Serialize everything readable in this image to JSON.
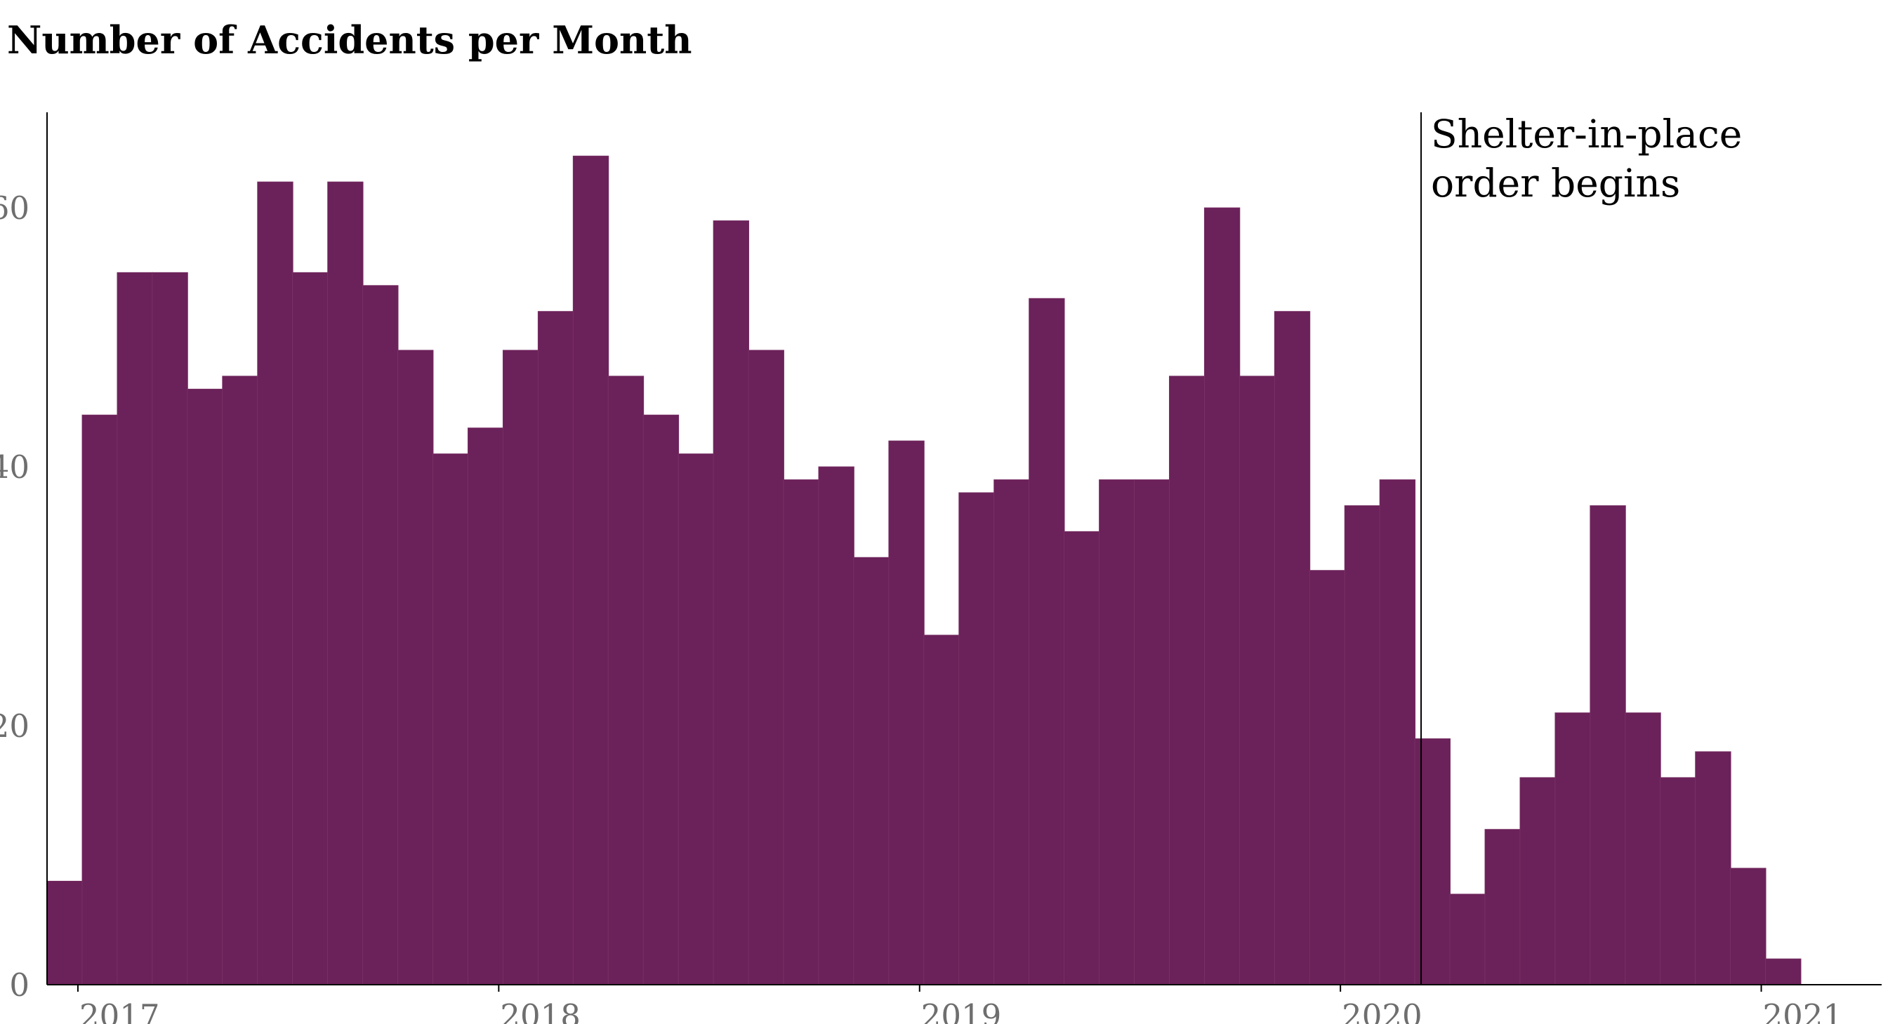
{
  "chart_data": {
    "type": "bar",
    "title": "Number of Accidents per Month",
    "xlabel": "",
    "ylabel": "",
    "x_start": "2016-12",
    "categories": [
      "2016-12",
      "2017-01",
      "2017-02",
      "2017-03",
      "2017-04",
      "2017-05",
      "2017-06",
      "2017-07",
      "2017-08",
      "2017-09",
      "2017-10",
      "2017-11",
      "2017-12",
      "2018-01",
      "2018-02",
      "2018-03",
      "2018-04",
      "2018-05",
      "2018-06",
      "2018-07",
      "2018-08",
      "2018-09",
      "2018-10",
      "2018-11",
      "2018-12",
      "2019-01",
      "2019-02",
      "2019-03",
      "2019-04",
      "2019-05",
      "2019-06",
      "2019-07",
      "2019-08",
      "2019-09",
      "2019-10",
      "2019-11",
      "2019-12",
      "2020-01",
      "2020-02",
      "2020-03",
      "2020-04",
      "2020-05",
      "2020-06",
      "2020-07",
      "2020-08",
      "2020-09",
      "2020-10",
      "2020-11",
      "2020-12",
      "2021-01"
    ],
    "values": [
      8,
      44,
      55,
      55,
      46,
      47,
      62,
      55,
      62,
      54,
      49,
      41,
      43,
      49,
      52,
      64,
      47,
      44,
      41,
      59,
      49,
      39,
      40,
      33,
      42,
      27,
      38,
      39,
      53,
      35,
      39,
      39,
      47,
      60,
      47,
      52,
      32,
      37,
      39,
      19,
      7,
      12,
      16,
      21,
      37,
      21,
      16,
      18,
      9,
      2
    ],
    "x_ticks": [
      "2017",
      "2018",
      "2019",
      "2020",
      "2021"
    ],
    "y_ticks": [
      "0",
      "20",
      "40",
      "60"
    ],
    "ylim": [
      0,
      67
    ],
    "grid": false,
    "bar_color": "#6b2159",
    "annotation": {
      "x": "2020-03",
      "lines": [
        "Shelter-in-place",
        "order begins"
      ]
    }
  }
}
